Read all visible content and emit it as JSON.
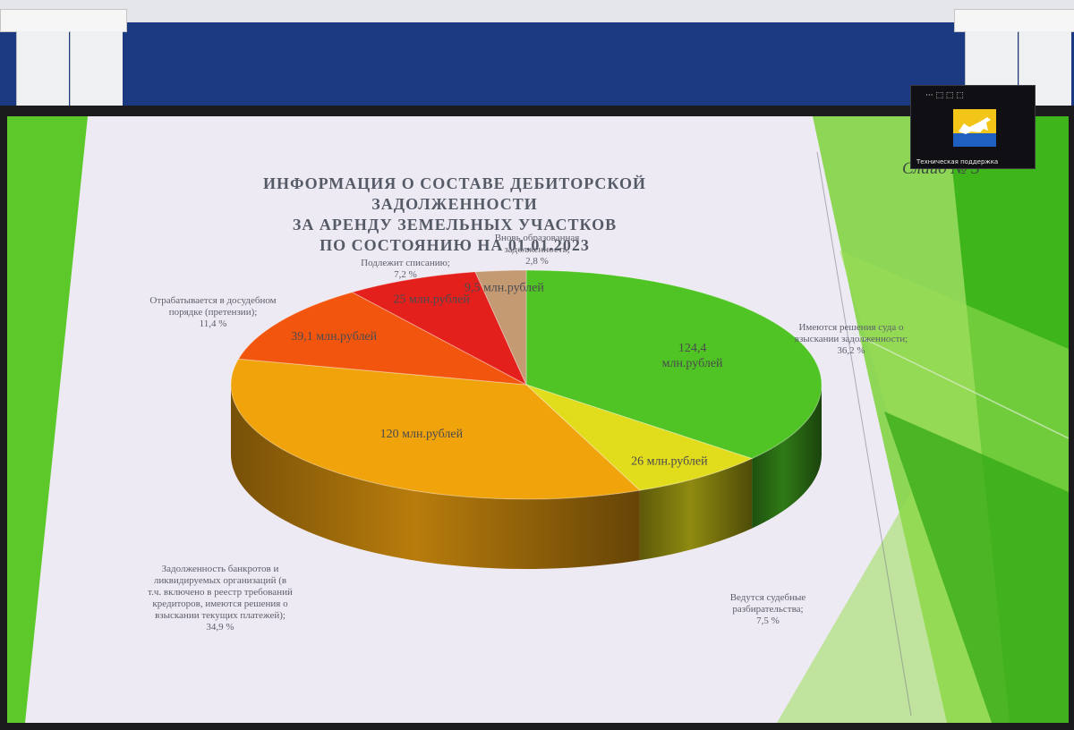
{
  "slide": {
    "title_lines": [
      "ИНФОРМАЦИЯ О СОСТАВЕ ДЕБИТОРСКОЙ ЗАДОЛЖЕННОСТИ",
      "ЗА АРЕНДУ ЗЕМЕЛЬНЫХ УЧАСТКОВ",
      "ПО СОСТОЯНИЮ НА 01.01.2023"
    ],
    "slide_number": "Слайд № 3"
  },
  "webcam": {
    "caption": "Техническая поддержка",
    "toolbar": "··· ⬚ ⬚ ⬚"
  },
  "chart_data": {
    "type": "pie",
    "title": "ИНФОРМАЦИЯ О СОСТАВЕ ДЕБИТОРСКОЙ ЗАДОЛЖЕННОСТИ ЗА АРЕНДУ ЗЕМЕЛЬНЫХ УЧАСТКОВ ПО СОСТОЯНИЮ НА 01.01.2023",
    "style": "3d",
    "slices": [
      {
        "category_lines": [
          "Имеются решения суда о",
          "взыскании задолженности;"
        ],
        "percent_label": "36,2 %",
        "percent": 36.2,
        "value_lines": [
          "124,4",
          "млн.рублей"
        ],
        "value": 124.4,
        "color": "#4fc424",
        "side_color": "#2f7a16"
      },
      {
        "category_lines": [
          "Ведутся судебные",
          "разбирательства;"
        ],
        "percent_label": "7,5 %",
        "percent": 7.5,
        "value_lines": [
          "26 млн.рублей"
        ],
        "value": 26,
        "color": "#e1dc1c",
        "side_color": "#8f8a10"
      },
      {
        "category_lines": [
          "Задолженность банкротов и",
          "ликвидируемых организаций (в",
          "т.ч. включено в реестр требований",
          "кредиторов, имеются решения о",
          "взыскании текущих платежей);"
        ],
        "percent_label": "34,9 %",
        "percent": 34.9,
        "value_lines": [
          "120 млн.рублей"
        ],
        "value": 120,
        "color": "#f0a30b",
        "side_color": "#b87c0c"
      },
      {
        "category_lines": [
          "Отрабатывается в досудебном",
          "порядке (претензии);"
        ],
        "percent_label": "11,4 %",
        "percent": 11.4,
        "value_lines": [
          "39,1 млн.рублей"
        ],
        "value": 39.1,
        "color": "#f2560e",
        "side_color": "#a33a0a"
      },
      {
        "category_lines": [
          "Подлежит списанию;"
        ],
        "percent_label": "7,2 %",
        "percent": 7.2,
        "value_lines": [
          "25 млн.рублей"
        ],
        "value": 25,
        "color": "#e3201c",
        "side_color": "#951512"
      },
      {
        "category_lines": [
          "Вновь образованная",
          "задолженность;"
        ],
        "percent_label": "2,8 %",
        "percent": 2.8,
        "value_lines": [
          "9,5 млн.рублей"
        ],
        "value": 9.5,
        "color": "#c49a72",
        "side_color": "#8a6a4c"
      }
    ]
  }
}
